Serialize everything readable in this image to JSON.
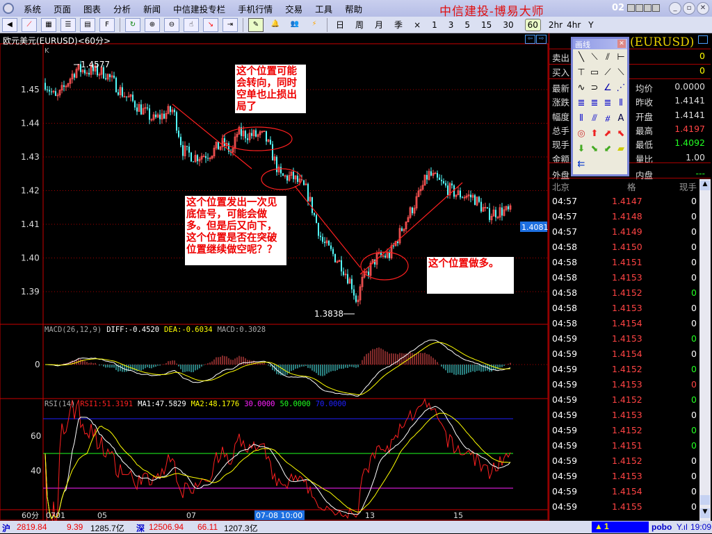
{
  "menu": [
    "系统",
    "页面",
    "图表",
    "分析",
    "新闻",
    "中信建投专栏",
    "手机行情",
    "交易",
    "工具",
    "帮助"
  ],
  "brand": "中信建投-博易大师",
  "window_code": "02",
  "toolbar": {
    "periods": [
      "日",
      "周",
      "月",
      "季",
      "×",
      "1",
      "3",
      "5",
      "15",
      "30",
      "60",
      "2hr",
      "4hr",
      "Y"
    ],
    "active_period": "60"
  },
  "chart": {
    "title": "欧元美元(EURUSD)<60分>",
    "k_label": "K",
    "price_ticks": [
      "1.45",
      "1.44",
      "1.43",
      "1.42",
      "1.41",
      "1.40",
      "1.39"
    ],
    "high_label": "1.4577",
    "low_label": "1.3838",
    "last_price": "1.4081",
    "annotations": [
      "这个位置可能会转向，同时空单也止损出局了",
      "这个位置发出一次见底信号，可能会做多。但是后又向下，这个位置是否在突破位置继续做空呢？？",
      "这个位置做多。"
    ],
    "time_axis": {
      "period": "60分",
      "labels": [
        "0701",
        "05",
        "07",
        "13",
        "15"
      ],
      "cursor": "07-08 10:00"
    },
    "colors": {
      "up": "#ff5454",
      "down": "#54fcfc",
      "trend": "#ff2020"
    }
  },
  "macd": {
    "name": "MACD(26,12,9)",
    "diff": "DIFF:-0.4520",
    "dea": "DEA:-0.6034",
    "macd": "MACD:0.3028",
    "zero": "0"
  },
  "rsi": {
    "name": "RSI(14)",
    "rsi1": "RSI1:51.3191",
    "ma1": "MA1:47.5829",
    "ma2": "MA2:48.1776",
    "l30": "30.0000",
    "l50": "50.0000",
    "l70": "70.0000",
    "ticks": [
      "60",
      "40"
    ]
  },
  "quote": {
    "symbol": "(EURUSD)",
    "rows": [
      {
        "l": "卖出",
        "v": "0"
      },
      {
        "l": "买入",
        "v": "0"
      }
    ],
    "grid": [
      {
        "l": "最新",
        "l2": "均价",
        "v2": "0.0000"
      },
      {
        "l": "涨跌",
        "l2": "昨收",
        "v2": "1.4141"
      },
      {
        "l": "幅度",
        "l2": "开盘",
        "v2": "1.4141"
      },
      {
        "l": "总手",
        "l2": "最高",
        "v2": "1.4197"
      },
      {
        "l": "现手",
        "l2": "最低",
        "v2": "1.4092"
      },
      {
        "l": "金额",
        "l2": "量比",
        "v2": "1.00"
      },
      {
        "l": "外盘",
        "l2": "内盘",
        "v2": "---"
      }
    ],
    "tick_header": {
      "time": "北京",
      "price": "格",
      "vol": "现手"
    },
    "ticks": [
      [
        "04:57",
        "1.4147",
        "0",
        "w"
      ],
      [
        "04:57",
        "1.4148",
        "0",
        "w"
      ],
      [
        "04:57",
        "1.4149",
        "0",
        "w"
      ],
      [
        "04:58",
        "1.4150",
        "0",
        "w"
      ],
      [
        "04:58",
        "1.4151",
        "0",
        "w"
      ],
      [
        "04:58",
        "1.4153",
        "0",
        "w"
      ],
      [
        "04:58",
        "1.4152",
        "0",
        "g"
      ],
      [
        "04:58",
        "1.4153",
        "0",
        "w"
      ],
      [
        "04:58",
        "1.4154",
        "0",
        "w"
      ],
      [
        "04:59",
        "1.4153",
        "0",
        "g"
      ],
      [
        "04:59",
        "1.4154",
        "0",
        "w"
      ],
      [
        "04:59",
        "1.4152",
        "0",
        "g"
      ],
      [
        "04:59",
        "1.4153",
        "0",
        "r"
      ],
      [
        "04:59",
        "1.4152",
        "0",
        "g"
      ],
      [
        "04:59",
        "1.4153",
        "0",
        "w"
      ],
      [
        "04:59",
        "1.4152",
        "0",
        "g"
      ],
      [
        "04:59",
        "1.4151",
        "0",
        "g"
      ],
      [
        "04:59",
        "1.4152",
        "0",
        "w"
      ],
      [
        "04:59",
        "1.4153",
        "0",
        "w"
      ],
      [
        "04:59",
        "1.4154",
        "0",
        "w"
      ],
      [
        "04:59",
        "1.4155",
        "0",
        "w"
      ]
    ]
  },
  "palette": {
    "title": "画线",
    "text_tool": "A"
  },
  "status": {
    "sh_label": "沪",
    "sh_index": "2819.84",
    "sh_change": "9.39",
    "sh_amount": "1285.7亿",
    "sz_label": "深",
    "sz_index": "12506.94",
    "sz_change": "66.11",
    "sz_amount": "1207.3亿",
    "alert": "1",
    "pobo": "pobo",
    "time": "19:09"
  }
}
